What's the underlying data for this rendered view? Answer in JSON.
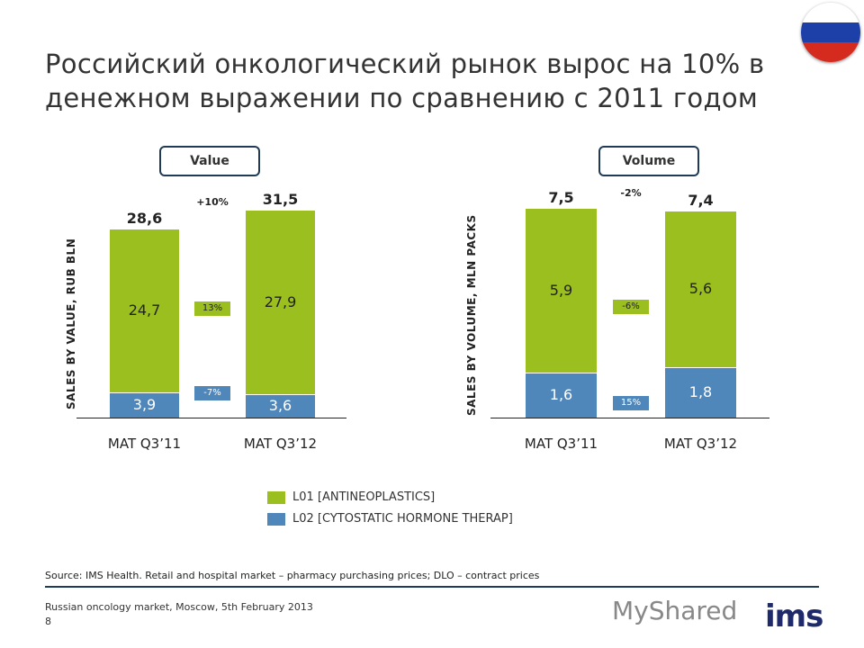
{
  "title": "Российский онкологический рынок вырос на 10% в денежном выражении по сравнению с 2011 годом",
  "colors": {
    "L01": "#9bbf1e",
    "L02": "#4f87bb"
  },
  "chart_data": [
    {
      "type": "bar",
      "stacked": true,
      "header": "Value",
      "ylabel": "SALES BY VALUE, RUB BLN",
      "categories": [
        "MAT Q3’11",
        "MAT Q3’12"
      ],
      "series": [
        {
          "name": "L02 [CYTOSTATIC HORMONE THERAP]",
          "values": [
            3.9,
            3.6
          ],
          "labels": [
            "3,9",
            "3,6"
          ],
          "change": "-7%"
        },
        {
          "name": "L01 [ANTINEOPLASTICS]",
          "values": [
            24.7,
            27.9
          ],
          "labels": [
            "24,7",
            "27,9"
          ],
          "change": "13%"
        }
      ],
      "totals": [
        "28,6",
        "31,5"
      ],
      "total_values": [
        28.6,
        31.5
      ],
      "total_change": "+10%"
    },
    {
      "type": "bar",
      "stacked": true,
      "header": "Volume",
      "ylabel": "SALES BY VOLUME, MLN PACKS",
      "categories": [
        "MAT Q3’11",
        "MAT Q3’12"
      ],
      "series": [
        {
          "name": "L02 [CYTOSTATIC HORMONE THERAP]",
          "values": [
            1.6,
            1.8
          ],
          "labels": [
            "1,6",
            "1,8"
          ],
          "change": "15%"
        },
        {
          "name": "L01 [ANTINEOPLASTICS]",
          "values": [
            5.9,
            5.6
          ],
          "labels": [
            "5,9",
            "5,6"
          ],
          "change": "-6%"
        }
      ],
      "totals": [
        "7,5",
        "7,4"
      ],
      "total_values": [
        7.5,
        7.4
      ],
      "total_change": "-2%"
    }
  ],
  "legend": [
    "L01 [ANTINEOPLASTICS]",
    "L02 [CYTOSTATIC HORMONE THERAP]"
  ],
  "source": "Source: IMS Health. Retail and hospital market – pharmacy purchasing prices; DLO – contract prices",
  "footer": "Russian oncology market, Moscow, 5th February 2013",
  "page_number": "8",
  "logo": "ims",
  "watermark": "MyShared"
}
